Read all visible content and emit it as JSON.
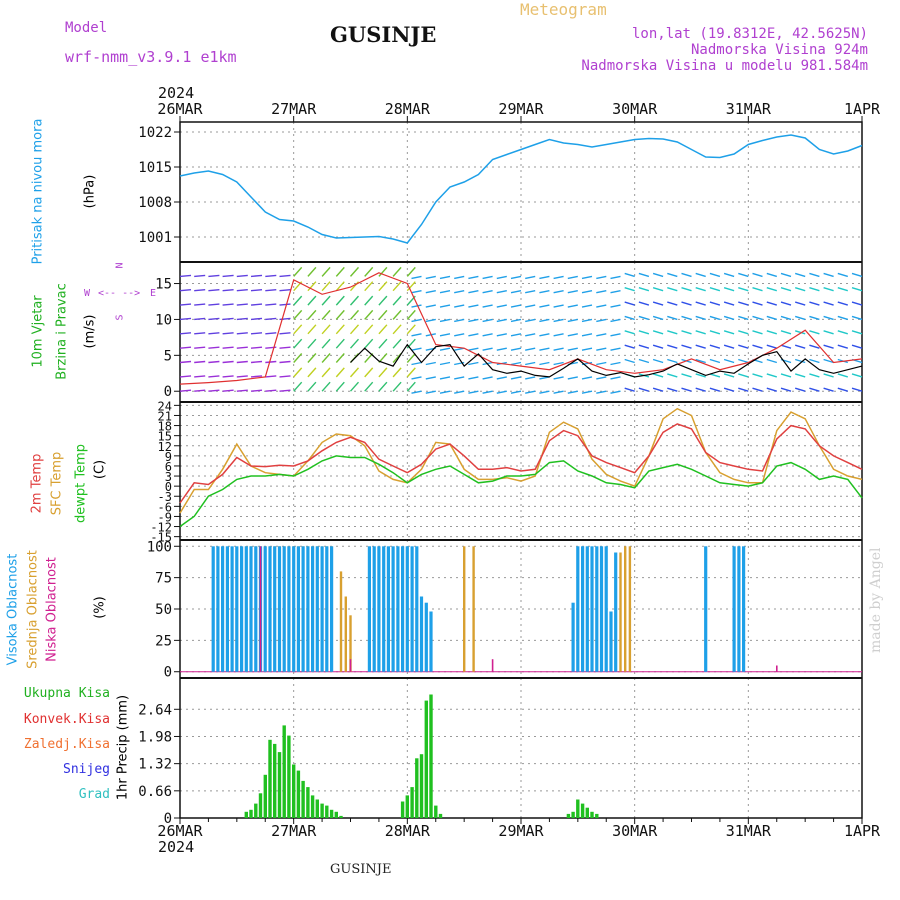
{
  "header": {
    "model_label": "Model",
    "model_name": "wrf-nmm_v3.9.1 e1km",
    "title": "GUSINJE",
    "meteogram_label": "Meteogram",
    "lonlat": "lon,lat (19.8312E, 42.5625N)",
    "elevation": "Nadmorska Visina 924m",
    "model_elevation": "Nadmorska Visina u modelu 981.584m",
    "year_top": "2024",
    "year_bottom": "2024",
    "footer_title": "GUSINJE",
    "credit": "made by Angel"
  },
  "panel_labels": {
    "pressure_name": "Pritisak na nivou mora",
    "pressure_unit": "(hPa)",
    "wind_name_1": "10m Vjetar",
    "wind_name_2": "Brzina i Pravac",
    "wind_unit": "(m/s)",
    "temp_2m": "2m Temp",
    "temp_sfc": "SFC Temp",
    "temp_dew": "dewpt Temp",
    "temp_unit": "(C)",
    "cloud_high": "Visoka Oblacnost",
    "cloud_mid": "Srednja Oblacnost",
    "cloud_low": "Niska Oblacnost",
    "cloud_unit": "(%)",
    "precip_unit": "1hr Precip (mm)",
    "compass": {
      "n": "N",
      "s": "S",
      "w": "W",
      "e": "E"
    }
  },
  "precip_legend": [
    {
      "label": "Ukupna Kisa",
      "color": "#20b020"
    },
    {
      "label": "Konvek.Kisa",
      "color": "#e03030"
    },
    {
      "label": "Zaledj.Kisa",
      "color": "#f07030"
    },
    {
      "label": "Snijeg",
      "color": "#3030e0"
    },
    {
      "label": "Grad",
      "color": "#30c0c0"
    }
  ],
  "colors": {
    "pressure": "#1ea0e8",
    "temp_2m": "#e04040",
    "temp_sfc": "#d8a030",
    "temp_dew": "#20c020",
    "cloud_high": "#1ea0e8",
    "cloud_mid": "#d8a030",
    "cloud_low": "#d02090",
    "precip": "#20c020",
    "wind_speed": "#000000",
    "wind_gust": "#e03030",
    "title_meteogram": "#e8c070",
    "header_text": "#b040d0"
  },
  "chart_data": [
    {
      "type": "line",
      "name": "pressure",
      "x_tick_labels": [
        "26MAR",
        "27MAR",
        "28MAR",
        "29MAR",
        "30MAR",
        "31MAR",
        "1APR"
      ],
      "x_unit": "hours since 26MAR 00",
      "ylim": [
        996,
        1024
      ],
      "y_ticks": [
        1001,
        1008,
        1015,
        1022
      ],
      "grid": true,
      "x": [
        0,
        3,
        6,
        9,
        12,
        15,
        18,
        21,
        24,
        27,
        30,
        33,
        36,
        39,
        42,
        45,
        48,
        51,
        54,
        57,
        60,
        63,
        66,
        69,
        72,
        75,
        78,
        81,
        84,
        87,
        90,
        93,
        96,
        99,
        102,
        105,
        108,
        111,
        114,
        117,
        120,
        123,
        126,
        129,
        132,
        135,
        138,
        141,
        144
      ],
      "values": [
        1013.2,
        1013.8,
        1014.2,
        1013.5,
        1012.0,
        1009.0,
        1006.0,
        1004.5,
        1004.2,
        1003.0,
        1001.5,
        1000.8,
        1000.9,
        1001.0,
        1001.1,
        1000.6,
        999.8,
        1003.5,
        1008.0,
        1011.0,
        1012.0,
        1013.5,
        1016.5,
        1017.5,
        1018.5,
        1019.5,
        1020.5,
        1019.8,
        1019.5,
        1019.0,
        1019.5,
        1020.0,
        1020.5,
        1020.7,
        1020.6,
        1020.0,
        1018.5,
        1017.0,
        1016.9,
        1017.6,
        1019.5,
        1020.3,
        1021.0,
        1021.4,
        1020.8,
        1018.5,
        1017.6,
        1018.2,
        1019.3
      ]
    },
    {
      "type": "line",
      "name": "wind",
      "ylim": [
        -1.5,
        18
      ],
      "y_ticks": [
        0,
        5,
        10,
        15
      ],
      "grid": true,
      "series": [
        {
          "name": "speed",
          "x": [
            36,
            39,
            42,
            45,
            48,
            51,
            54,
            57,
            60,
            63,
            66,
            69,
            72,
            75,
            78,
            81,
            84,
            87,
            90,
            93,
            96,
            99,
            102,
            105,
            108,
            111,
            114,
            117,
            120,
            123,
            126,
            129,
            132,
            135,
            138,
            141,
            144
          ],
          "values": [
            4.0,
            6.0,
            4.2,
            3.5,
            6.5,
            4.0,
            6.2,
            6.5,
            3.5,
            5.2,
            3.0,
            2.5,
            2.8,
            2.2,
            2.0,
            3.2,
            4.5,
            2.8,
            2.2,
            2.6,
            2.0,
            2.3,
            2.8,
            3.8,
            3.0,
            2.2,
            2.8,
            2.5,
            3.8,
            5.0,
            5.5,
            2.8,
            4.5,
            3.0,
            2.5,
            3.0,
            3.5
          ]
        },
        {
          "name": "gust",
          "x": [
            0,
            6,
            12,
            18,
            24,
            30,
            36,
            42,
            48,
            54,
            60,
            66,
            72,
            78,
            84,
            90,
            96,
            102,
            108,
            114,
            120,
            126,
            132,
            138,
            144
          ],
          "values": [
            1.0,
            1.2,
            1.5,
            2.0,
            15.5,
            13.5,
            14.5,
            16.5,
            15.0,
            6.5,
            6.0,
            4.0,
            3.5,
            3.0,
            4.5,
            3.0,
            2.5,
            3.0,
            4.5,
            3.0,
            4.0,
            6.0,
            8.5,
            4.0,
            4.5
          ]
        }
      ]
    },
    {
      "type": "line",
      "name": "temperature",
      "ylim": [
        -16,
        25
      ],
      "y_ticks": [
        -15,
        -12,
        -9,
        -6,
        -3,
        0,
        3,
        6,
        9,
        12,
        15,
        18,
        21,
        24
      ],
      "grid": true,
      "series": [
        {
          "name": "2m",
          "x": [
            0,
            3,
            6,
            9,
            12,
            15,
            18,
            21,
            24,
            27,
            30,
            33,
            36,
            39,
            42,
            45,
            48,
            51,
            54,
            57,
            60,
            63,
            66,
            69,
            72,
            75,
            78,
            81,
            84,
            87,
            90,
            93,
            96,
            99,
            102,
            105,
            108,
            111,
            114,
            117,
            120,
            123,
            126,
            129,
            132,
            135,
            138,
            141,
            144
          ],
          "values": [
            -5.0,
            1.0,
            0.5,
            3.5,
            8.5,
            6.0,
            5.8,
            6.2,
            6.0,
            7.5,
            10.5,
            13.0,
            14.5,
            13.0,
            8.0,
            6.0,
            4.0,
            6.5,
            11.0,
            12.5,
            9.0,
            5.0,
            5.0,
            5.5,
            4.5,
            5.0,
            13.5,
            16.5,
            15.0,
            9.0,
            7.0,
            5.5,
            4.0,
            9.0,
            16.0,
            18.5,
            17.0,
            10.0,
            7.0,
            6.0,
            5.0,
            4.5,
            14.0,
            18.0,
            17.0,
            12.0,
            9.0,
            7.0,
            5.0
          ]
        },
        {
          "name": "sfc",
          "x": [
            0,
            3,
            6,
            9,
            12,
            15,
            18,
            21,
            24,
            27,
            30,
            33,
            36,
            39,
            42,
            45,
            48,
            51,
            54,
            57,
            60,
            63,
            66,
            69,
            72,
            75,
            78,
            81,
            84,
            87,
            90,
            93,
            96,
            99,
            102,
            105,
            108,
            111,
            114,
            117,
            120,
            123,
            126,
            129,
            132,
            135,
            138,
            141,
            144
          ],
          "values": [
            -8.0,
            -1.0,
            -1.0,
            5.0,
            12.5,
            6.0,
            4.0,
            3.5,
            3.0,
            7.5,
            13.0,
            15.5,
            15.0,
            12.0,
            4.5,
            2.0,
            1.0,
            5.0,
            13.0,
            12.5,
            5.0,
            2.0,
            2.0,
            2.5,
            1.5,
            3.0,
            16.0,
            19.0,
            17.0,
            8.0,
            3.5,
            1.5,
            0.0,
            9.0,
            20.0,
            23.0,
            21.0,
            10.0,
            4.0,
            2.0,
            1.0,
            1.0,
            16.5,
            22.0,
            20.0,
            12.0,
            5.0,
            3.0,
            2.0
          ]
        },
        {
          "name": "dewpoint",
          "x": [
            0,
            3,
            6,
            9,
            12,
            15,
            18,
            21,
            24,
            27,
            30,
            33,
            36,
            39,
            42,
            45,
            48,
            51,
            54,
            57,
            60,
            63,
            66,
            69,
            72,
            75,
            78,
            81,
            84,
            87,
            90,
            93,
            96,
            99,
            102,
            105,
            108,
            111,
            114,
            117,
            120,
            123,
            126,
            129,
            132,
            135,
            138,
            141,
            144
          ],
          "values": [
            -12.0,
            -9.0,
            -3.0,
            -1.0,
            2.0,
            3.0,
            3.0,
            3.5,
            3.0,
            5.0,
            7.5,
            9.0,
            8.5,
            8.5,
            6.5,
            4.0,
            1.0,
            3.5,
            5.0,
            6.0,
            3.5,
            1.0,
            1.5,
            3.0,
            3.0,
            3.5,
            7.0,
            7.5,
            4.5,
            3.0,
            1.0,
            0.5,
            -0.5,
            4.5,
            5.5,
            6.5,
            5.0,
            3.0,
            1.0,
            0.5,
            0.0,
            1.0,
            6.0,
            7.0,
            5.0,
            2.0,
            3.0,
            2.0,
            -3.5
          ]
        }
      ]
    },
    {
      "type": "bar",
      "name": "cloud_cover",
      "ylim": [
        -5,
        105
      ],
      "y_ticks": [
        0,
        25,
        50,
        75,
        100
      ],
      "grid": true,
      "series": [
        {
          "name": "high",
          "x": [
            7,
            8,
            9,
            10,
            11,
            12,
            13,
            14,
            15,
            16,
            17,
            18,
            19,
            20,
            21,
            22,
            23,
            24,
            25,
            26,
            27,
            28,
            29,
            30,
            31,
            32,
            40,
            41,
            42,
            43,
            44,
            45,
            46,
            47,
            48,
            49,
            50,
            51,
            52,
            53,
            83,
            84,
            85,
            86,
            87,
            88,
            89,
            90,
            91,
            92,
            111,
            117,
            118,
            119
          ],
          "values": [
            100,
            100,
            100,
            100,
            100,
            100,
            100,
            100,
            100,
            100,
            100,
            100,
            100,
            100,
            100,
            100,
            100,
            100,
            100,
            100,
            100,
            100,
            100,
            100,
            100,
            100,
            100,
            100,
            100,
            100,
            100,
            100,
            100,
            100,
            100,
            100,
            100,
            60,
            55,
            48,
            55,
            100,
            100,
            100,
            100,
            100,
            100,
            100,
            48,
            95,
            100,
            100,
            100,
            100
          ]
        },
        {
          "name": "middle",
          "x": [
            14,
            15,
            16,
            17,
            18,
            19,
            20,
            21,
            22,
            23,
            24,
            25,
            26,
            27,
            28,
            29,
            30,
            31,
            32,
            34,
            35,
            36,
            60,
            62,
            93,
            94,
            95
          ],
          "values": [
            100,
            100,
            100,
            100,
            100,
            100,
            100,
            100,
            100,
            100,
            100,
            100,
            100,
            100,
            100,
            100,
            100,
            100,
            100,
            80,
            60,
            45,
            100,
            100,
            95,
            100,
            100
          ]
        },
        {
          "name": "low",
          "x": [
            17,
            36,
            66,
            126
          ],
          "values": [
            100,
            10,
            10,
            5
          ]
        }
      ]
    },
    {
      "type": "bar",
      "name": "precipitation",
      "ylim": [
        0,
        3.4
      ],
      "y_ticks": [
        0,
        0.66,
        1.32,
        1.98,
        2.64
      ],
      "grid": true,
      "series": [
        {
          "name": "total",
          "x": [
            14,
            15,
            16,
            17,
            18,
            19,
            20,
            21,
            22,
            23,
            24,
            25,
            26,
            27,
            28,
            29,
            30,
            31,
            32,
            33,
            34,
            36,
            37,
            38,
            39,
            40,
            41,
            42,
            43,
            44,
            45,
            46,
            47,
            48,
            49,
            50,
            51,
            52,
            53,
            54,
            55,
            56,
            57,
            58,
            59,
            60,
            61,
            62,
            63,
            64,
            65,
            66,
            67,
            68,
            69,
            70,
            71,
            72,
            73,
            74,
            75,
            76,
            77,
            78,
            79,
            80,
            81,
            82,
            83,
            84,
            85,
            86,
            87,
            88,
            89,
            90,
            91
          ],
          "values": [
            0.15,
            0.2,
            0.35,
            0.6,
            1.05,
            1.9,
            1.8,
            1.6,
            2.25,
            2.0,
            1.3,
            1.15,
            0.9,
            0.75,
            0.55,
            0.45,
            0.35,
            0.3,
            0.2,
            0.15,
            0.05,
            0.0,
            0.0,
            0.0,
            0.0,
            0.0,
            0.0,
            0.0,
            0.0,
            0.0,
            0.0,
            0.0,
            0.4,
            0.55,
            0.75,
            1.45,
            1.55,
            2.85,
            3.0,
            0.3,
            0.1,
            0.0,
            0.0,
            0.0,
            0.0,
            0.0,
            0.0,
            0.0,
            0.0,
            0.0,
            0.0,
            0.0,
            0.0,
            0.0,
            0.0,
            0.0,
            0.0,
            0.0,
            0.0,
            0.0,
            0.0,
            0.0,
            0.0,
            0.0,
            0.0,
            0.0,
            0.0,
            0.1,
            0.15,
            0.45,
            0.35,
            0.25,
            0.15,
            0.1,
            0.0,
            0.0,
            0.0
          ]
        }
      ]
    }
  ]
}
